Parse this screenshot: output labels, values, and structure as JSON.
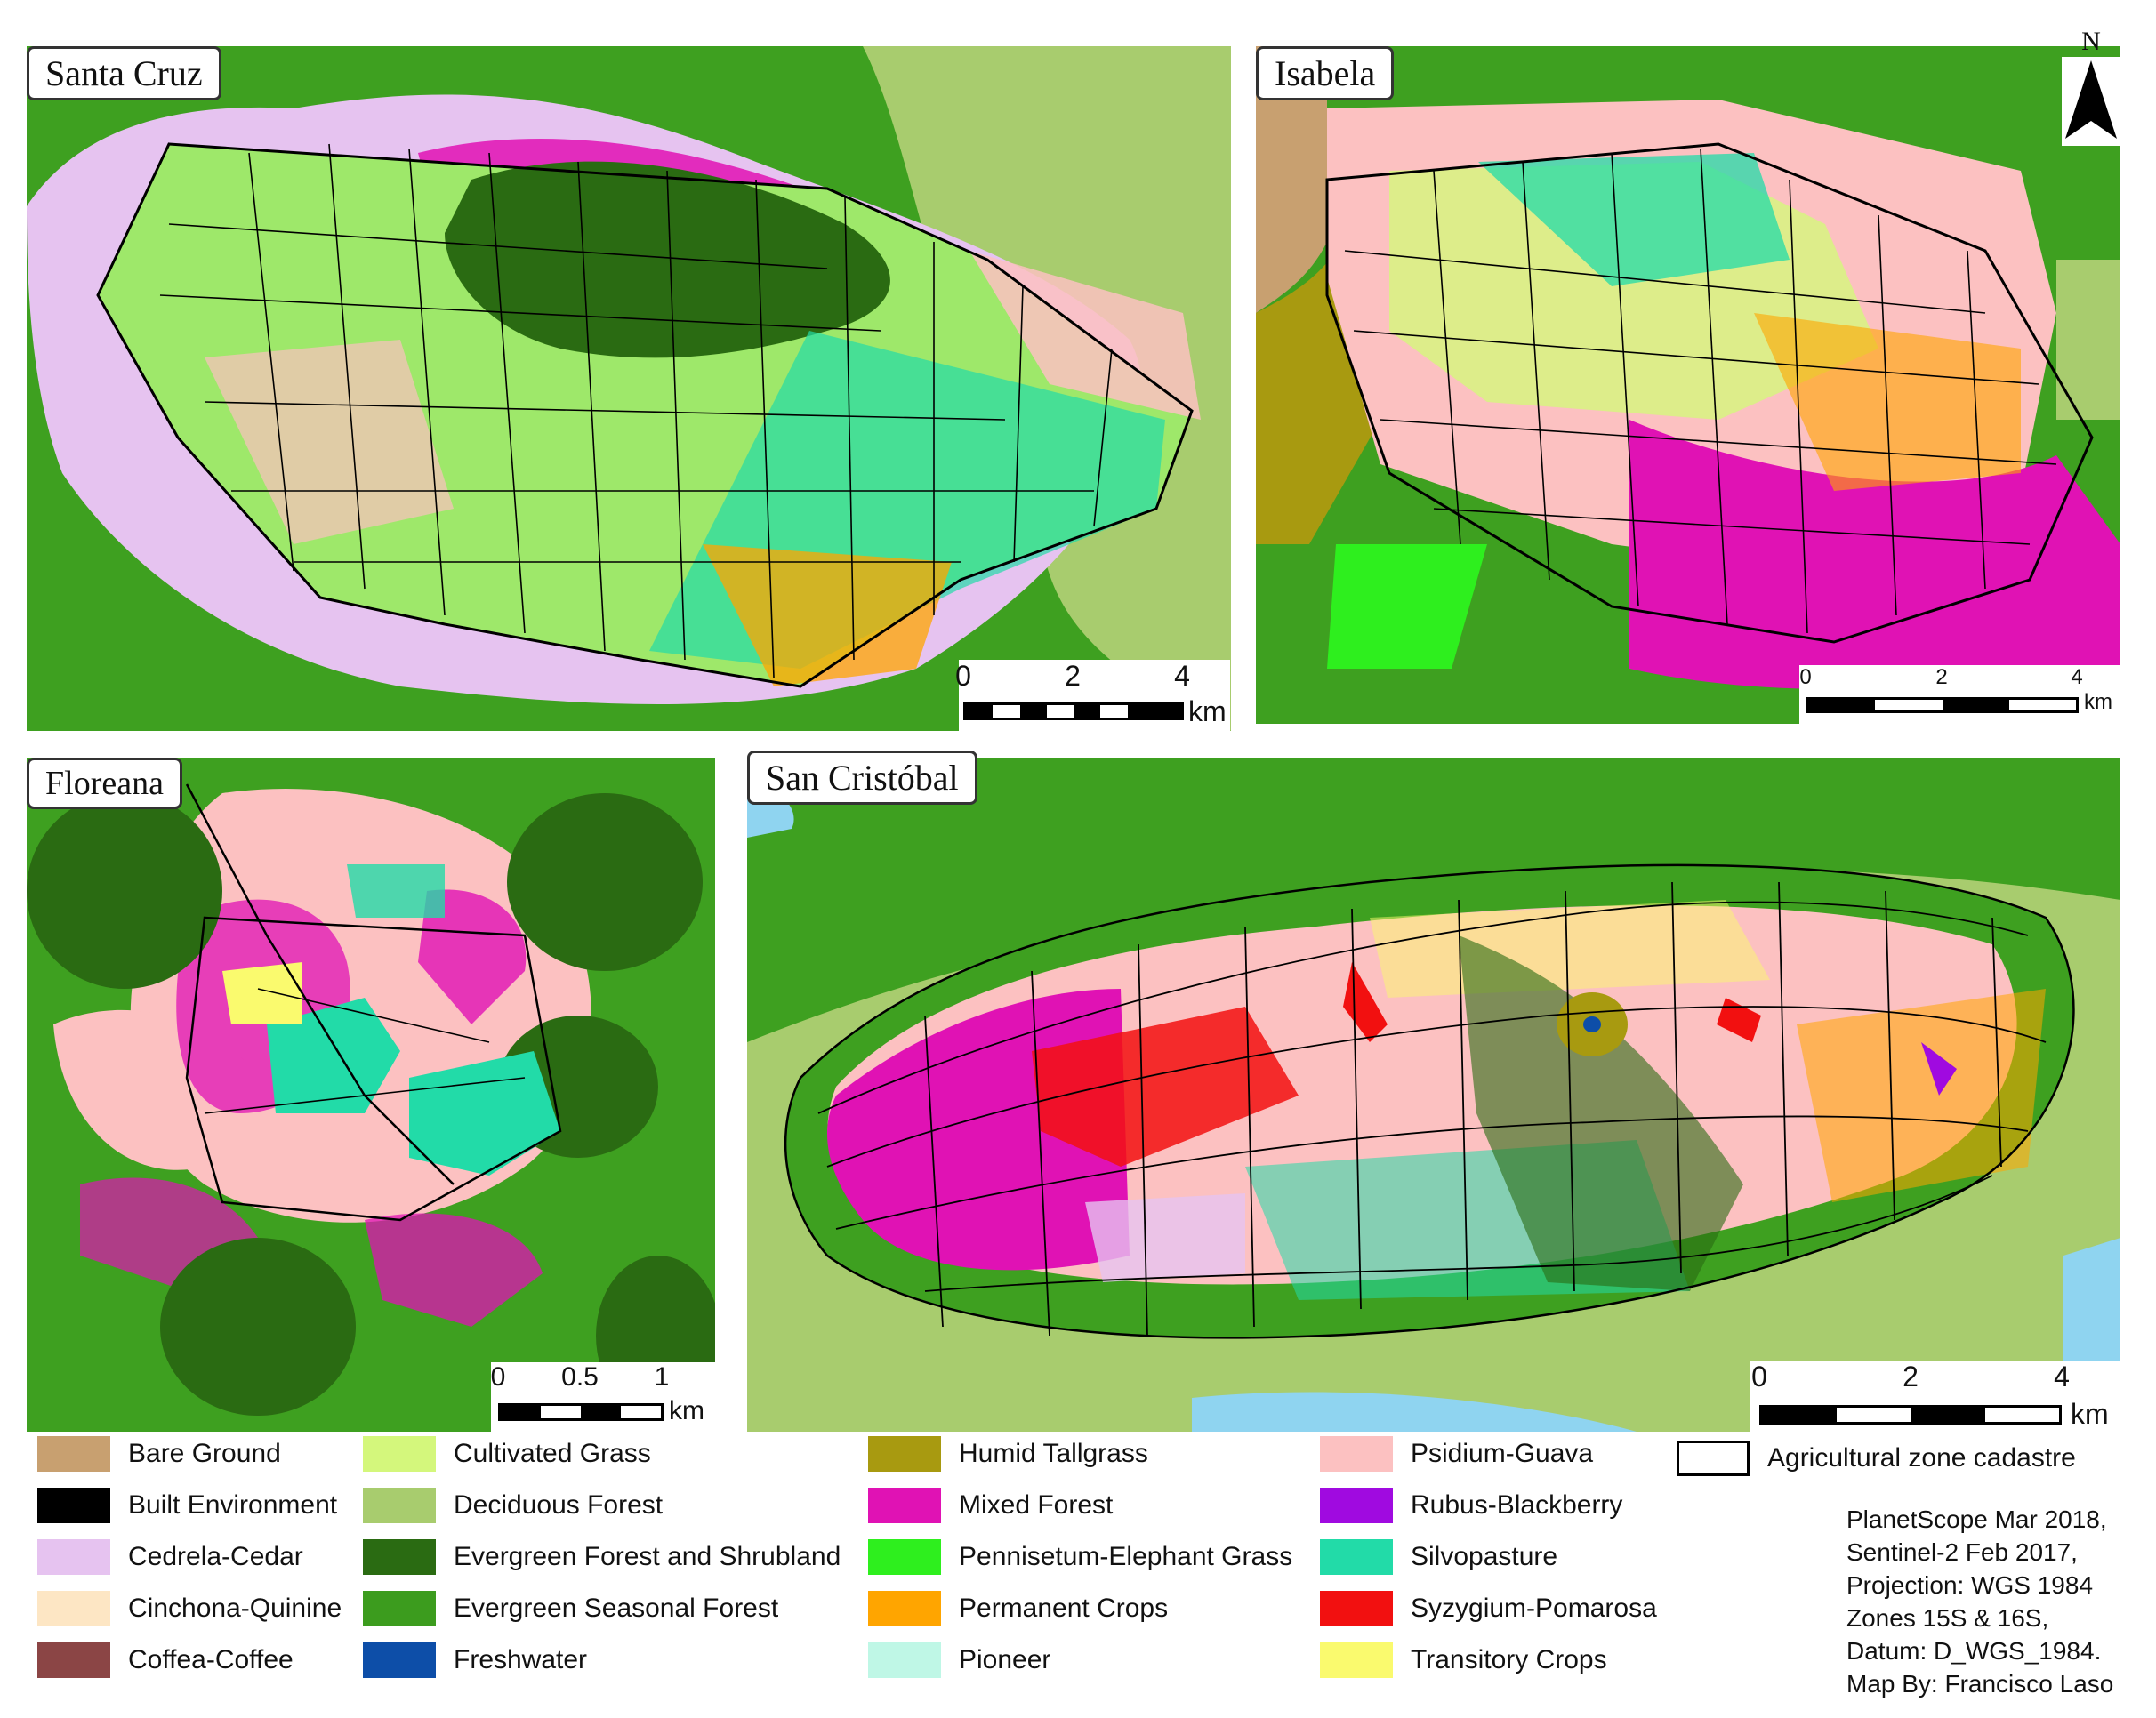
{
  "panels": [
    {
      "id": "santa-cruz",
      "label": "Santa Cruz",
      "scale": {
        "ticks": [
          "0",
          "2",
          "4"
        ],
        "unit": "km"
      }
    },
    {
      "id": "isabela",
      "label": "Isabela",
      "scale": {
        "ticks": [
          "0",
          "2",
          "4"
        ],
        "unit": "km"
      }
    },
    {
      "id": "floreana",
      "label": "Floreana",
      "scale": {
        "ticks": [
          "0",
          "0.5",
          "1"
        ],
        "unit": "km"
      }
    },
    {
      "id": "san-cristobal",
      "label": "San Cristóbal",
      "scale": {
        "ticks": [
          "0",
          "2",
          "4"
        ],
        "unit": "km"
      }
    }
  ],
  "north_arrow": {
    "label": "N"
  },
  "legend": {
    "columns": [
      [
        {
          "label": "Bare Ground",
          "color": "#c8a070"
        },
        {
          "label": "Built Environment",
          "color": "#000000"
        },
        {
          "label": "Cedrela-Cedar",
          "color": "#e6c3f0"
        },
        {
          "label": "Cinchona-Quinine",
          "color": "#fde6c4"
        },
        {
          "label": "Coffea-Coffee",
          "color": "#8b4545"
        }
      ],
      [
        {
          "label": "Cultivated Grass",
          "color": "#d4f77c"
        },
        {
          "label": "Deciduous Forest",
          "color": "#a8cc6e"
        },
        {
          "label": "Evergreen Forest and Shrubland",
          "color": "#2a6b12"
        },
        {
          "label": "Evergreen Seasonal Forest",
          "color": "#3c9c1e"
        },
        {
          "label": "Freshwater",
          "color": "#0d4ea8"
        }
      ],
      [
        {
          "label": "Humid Tallgrass",
          "color": "#a89a10"
        },
        {
          "label": "Mixed Forest",
          "color": "#e012b4"
        },
        {
          "label": "Pennisetum-Elephant Grass",
          "color": "#2eef1e"
        },
        {
          "label": "Permanent Crops",
          "color": "#ffa500"
        },
        {
          "label": "Pioneer",
          "color": "#bff7e6"
        }
      ],
      [
        {
          "label": "Psidium-Guava",
          "color": "#fcc1c1"
        },
        {
          "label": "Rubus-Blackberry",
          "color": "#a00ae0"
        },
        {
          "label": "Silvopasture",
          "color": "#22dba8"
        },
        {
          "label": "Syzygium-Pomarosa",
          "color": "#f21010"
        },
        {
          "label": "Transitory Crops",
          "color": "#fafa6e"
        }
      ]
    ],
    "cadastre_label": "Agricultural zone cadastre"
  },
  "credits": [
    "PlanetScope Mar 2018,",
    "Sentinel-2 Feb 2017,",
    "Projection: WGS 1984",
    "Zones 15S & 16S,",
    "Datum: D_WGS_1984.",
    "Map By: Francisco Laso"
  ],
  "colors": {
    "sea_light": "#9fca66",
    "sea_water": "#8fd4f0",
    "background_forest": "#3ea020",
    "cadastre_line": "#000000"
  }
}
